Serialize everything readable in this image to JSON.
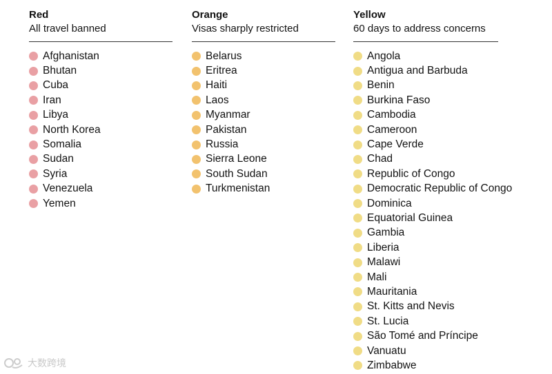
{
  "columns": [
    {
      "id": "red",
      "title": "Red",
      "subtitle": "All travel banned",
      "dot_color": "#e9a0a4",
      "countries": [
        "Afghanistan",
        "Bhutan",
        "Cuba",
        "Iran",
        "Libya",
        "North Korea",
        "Somalia",
        "Sudan",
        "Syria",
        "Venezuela",
        "Yemen"
      ]
    },
    {
      "id": "orange",
      "title": "Orange",
      "subtitle": "Visas sharply restricted",
      "dot_color": "#f2c26e",
      "countries": [
        "Belarus",
        "Eritrea",
        "Haiti",
        "Laos",
        "Myanmar",
        "Pakistan",
        "Russia",
        "Sierra Leone",
        "South Sudan",
        "Turkmenistan"
      ]
    },
    {
      "id": "yellow",
      "title": "Yellow",
      "subtitle": "60 days to address concerns",
      "dot_color": "#f0dc86",
      "countries": [
        "Angola",
        "Antigua and Barbuda",
        "Benin",
        "Burkina Faso",
        "Cambodia",
        "Cameroon",
        "Cape Verde",
        "Chad",
        "Republic of Congo",
        "Democratic Republic of Congo",
        "Dominica",
        "Equatorial Guinea",
        "Gambia",
        "Liberia",
        "Malawi",
        "Mali",
        "Mauritania",
        "St. Kitts and Nevis",
        "St. Lucia",
        "São Tomé and Príncipe",
        "Vanuatu",
        "Zimbabwe"
      ]
    }
  ],
  "watermark": {
    "text": "大数跨境",
    "icon": "watermark-logo-icon"
  }
}
